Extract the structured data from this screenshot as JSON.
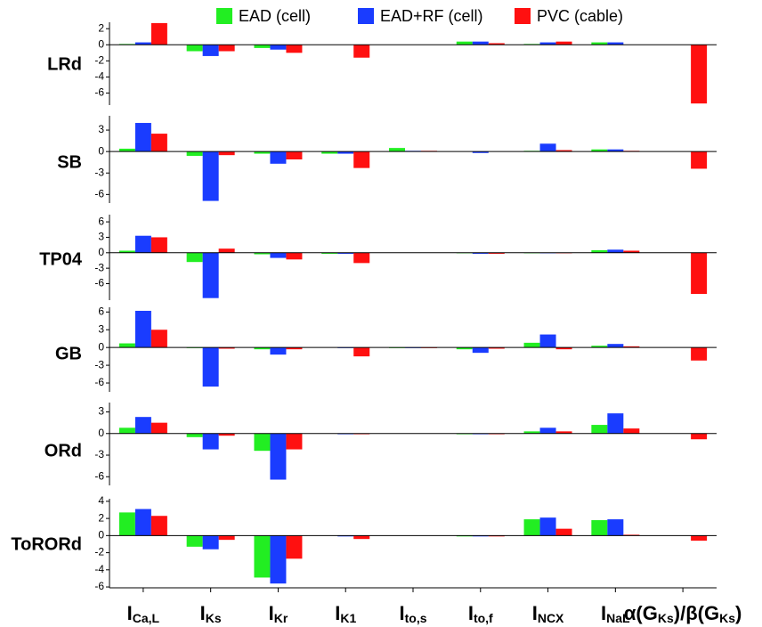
{
  "chart_data": [
    {
      "type": "bar",
      "title": "LRd",
      "categories": [
        [
          "I",
          "Ca,L"
        ],
        [
          "I",
          "Ks"
        ],
        [
          "I",
          "Kr"
        ],
        [
          "I",
          "K1"
        ],
        [
          "I",
          "to,s"
        ],
        [
          "I",
          "to,f"
        ],
        [
          "I",
          "NCX"
        ],
        [
          "I",
          "NaL"
        ],
        [
          "α(G",
          "Ks",
          ")/β(G",
          "Ks",
          ")"
        ]
      ],
      "series": [
        {
          "name": "EAD (cell)",
          "color": "#22ee22",
          "values": [
            0.1,
            -0.8,
            -0.4,
            0,
            0,
            0.4,
            0.1,
            0.3,
            0
          ]
        },
        {
          "name": "EAD+RF (cell)",
          "color": "#1a3cff",
          "values": [
            0.3,
            -1.4,
            -0.6,
            0,
            0,
            0.4,
            0.3,
            0.3,
            0
          ]
        },
        {
          "name": "PVC (cable)",
          "color": "#ff1010",
          "values": [
            2.7,
            -0.8,
            -1.0,
            -1.6,
            0,
            0.2,
            0.4,
            0,
            -7.3
          ]
        }
      ],
      "ylim": [
        -7.5,
        2.8
      ],
      "yticks": [
        2,
        0,
        -2,
        -4,
        -6
      ]
    },
    {
      "type": "bar",
      "title": "SB",
      "categories": [
        [
          "I",
          "Ca,L"
        ],
        [
          "I",
          "Ks"
        ],
        [
          "I",
          "Kr"
        ],
        [
          "I",
          "K1"
        ],
        [
          "I",
          "to,s"
        ],
        [
          "I",
          "to,f"
        ],
        [
          "I",
          "NCX"
        ],
        [
          "I",
          "NaL"
        ],
        [
          "α(G",
          "Ks",
          ")/β(G",
          "Ks",
          ")"
        ]
      ],
      "series": [
        {
          "name": "EAD (cell)",
          "color": "#22ee22",
          "values": [
            0.4,
            -0.6,
            -0.3,
            -0.3,
            0.5,
            0,
            0.1,
            0.3,
            0
          ]
        },
        {
          "name": "EAD+RF (cell)",
          "color": "#1a3cff",
          "values": [
            4.0,
            -6.9,
            -1.7,
            -0.3,
            0.1,
            -0.2,
            1.1,
            0.3,
            0
          ]
        },
        {
          "name": "PVC (cable)",
          "color": "#ff1010",
          "values": [
            2.5,
            -0.5,
            -1.1,
            -2.3,
            0.1,
            0,
            0.2,
            0.1,
            -2.4
          ]
        }
      ],
      "ylim": [
        -7.2,
        5
      ],
      "yticks": [
        3,
        0,
        -3,
        -6
      ]
    },
    {
      "type": "bar",
      "title": "TP04",
      "categories": [
        [
          "I",
          "Ca,L"
        ],
        [
          "I",
          "Ks"
        ],
        [
          "I",
          "Kr"
        ],
        [
          "I",
          "K1"
        ],
        [
          "I",
          "to,s"
        ],
        [
          "I",
          "to,f"
        ],
        [
          "I",
          "NCX"
        ],
        [
          "I",
          "NaL"
        ],
        [
          "α(G",
          "Ks",
          ")/β(G",
          "Ks",
          ")"
        ]
      ],
      "series": [
        {
          "name": "EAD (cell)",
          "color": "#22ee22",
          "values": [
            0.4,
            -1.8,
            -0.3,
            -0.2,
            0,
            -0.1,
            -0.1,
            0.5,
            0
          ]
        },
        {
          "name": "EAD+RF (cell)",
          "color": "#1a3cff",
          "values": [
            3.3,
            -8.8,
            -1.0,
            -0.2,
            0,
            -0.2,
            -0.1,
            0.6,
            0
          ]
        },
        {
          "name": "PVC (cable)",
          "color": "#ff1010",
          "values": [
            3.0,
            0.8,
            -1.3,
            -2.0,
            0,
            -0.2,
            -0.1,
            0.4,
            -8.0
          ]
        }
      ],
      "ylim": [
        -9.2,
        7.4
      ],
      "yticks": [
        6,
        3,
        0,
        -3,
        -6
      ]
    },
    {
      "type": "bar",
      "title": "GB",
      "categories": [
        [
          "I",
          "Ca,L"
        ],
        [
          "I",
          "Ks"
        ],
        [
          "I",
          "Kr"
        ],
        [
          "I",
          "K1"
        ],
        [
          "I",
          "to,s"
        ],
        [
          "I",
          "to,f"
        ],
        [
          "I",
          "NCX"
        ],
        [
          "I",
          "NaL"
        ],
        [
          "α(G",
          "Ks",
          ")/β(G",
          "Ks",
          ")"
        ]
      ],
      "series": [
        {
          "name": "EAD (cell)",
          "color": "#22ee22",
          "values": [
            0.7,
            -0.1,
            -0.3,
            0,
            -0.1,
            -0.3,
            0.8,
            0.3,
            0
          ]
        },
        {
          "name": "EAD+RF (cell)",
          "color": "#1a3cff",
          "values": [
            6.2,
            -6.6,
            -1.2,
            -0.1,
            -0.1,
            -0.9,
            2.2,
            0.6,
            0
          ]
        },
        {
          "name": "PVC (cable)",
          "color": "#ff1010",
          "values": [
            3.0,
            -0.2,
            -0.3,
            -1.5,
            -0.1,
            -0.2,
            -0.3,
            0.2,
            -2.2
          ]
        }
      ],
      "ylim": [
        -7.5,
        6.8
      ],
      "yticks": [
        6,
        3,
        0,
        -3,
        -6
      ]
    },
    {
      "type": "bar",
      "title": "ORd",
      "categories": [
        [
          "I",
          "Ca,L"
        ],
        [
          "I",
          "Ks"
        ],
        [
          "I",
          "Kr"
        ],
        [
          "I",
          "K1"
        ],
        [
          "I",
          "to,s"
        ],
        [
          "I",
          "to,f"
        ],
        [
          "I",
          "NCX"
        ],
        [
          "I",
          "NaL"
        ],
        [
          "α(G",
          "Ks",
          ")/β(G",
          "Ks",
          ")"
        ]
      ],
      "series": [
        {
          "name": "EAD (cell)",
          "color": "#22ee22",
          "values": [
            0.8,
            -0.5,
            -2.4,
            0,
            0,
            -0.1,
            0.3,
            1.2,
            0
          ]
        },
        {
          "name": "EAD+RF (cell)",
          "color": "#1a3cff",
          "values": [
            2.3,
            -2.2,
            -6.4,
            -0.1,
            0,
            -0.1,
            0.8,
            2.8,
            0
          ]
        },
        {
          "name": "PVC (cable)",
          "color": "#ff1010",
          "values": [
            1.5,
            -0.3,
            -2.2,
            -0.1,
            0,
            -0.1,
            0.3,
            0.7,
            -0.8
          ]
        }
      ],
      "ylim": [
        -7.2,
        4.3
      ],
      "yticks": [
        3,
        0,
        -3,
        -6
      ]
    },
    {
      "type": "bar",
      "title": "ToRORd",
      "categories": [
        [
          "I",
          "Ca,L"
        ],
        [
          "I",
          "Ks"
        ],
        [
          "I",
          "Kr"
        ],
        [
          "I",
          "K1"
        ],
        [
          "I",
          "to,s"
        ],
        [
          "I",
          "to,f"
        ],
        [
          "I",
          "NCX"
        ],
        [
          "I",
          "NaL"
        ],
        [
          "α(G",
          "Ks",
          ")/β(G",
          "Ks",
          ")"
        ]
      ],
      "series": [
        {
          "name": "EAD (cell)",
          "color": "#22ee22",
          "values": [
            2.7,
            -1.3,
            -4.9,
            0,
            0,
            -0.1,
            1.9,
            1.8,
            0
          ]
        },
        {
          "name": "EAD+RF (cell)",
          "color": "#1a3cff",
          "values": [
            3.1,
            -1.6,
            -5.6,
            -0.1,
            0,
            -0.1,
            2.1,
            1.9,
            0
          ]
        },
        {
          "name": "PVC (cable)",
          "color": "#ff1010",
          "values": [
            2.3,
            -0.5,
            -2.7,
            -0.4,
            0,
            -0.1,
            0.8,
            0.1,
            -0.6
          ]
        }
      ],
      "ylim": [
        -6.1,
        4.3
      ],
      "yticks": [
        4,
        2,
        0,
        -2,
        -4,
        -6
      ]
    }
  ]
}
